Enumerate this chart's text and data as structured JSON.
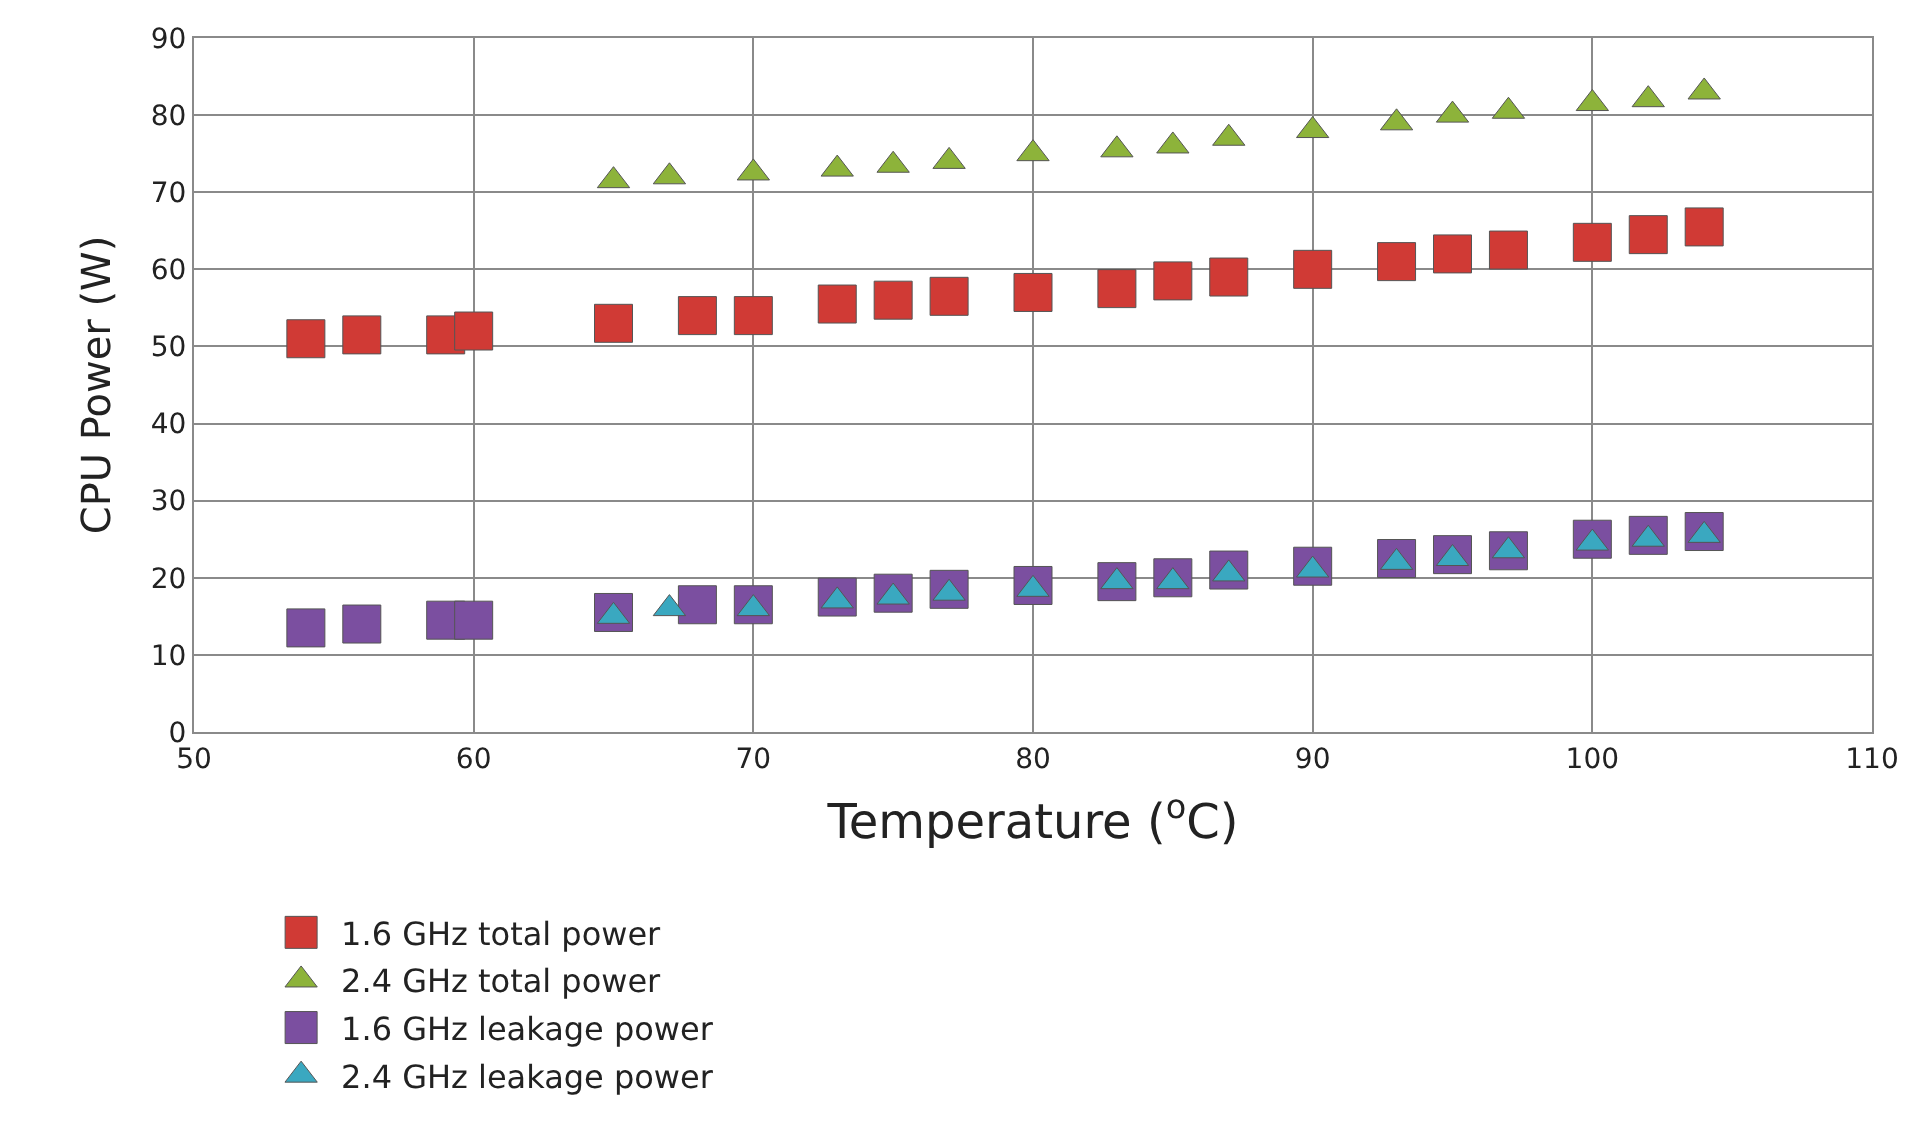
{
  "chart_data": {
    "type": "scatter",
    "xlabel": "Temperature ($^{o}$C)",
    "ylabel": "CPU Power (W)",
    "xlim": [
      50,
      110
    ],
    "xticks": [
      50,
      60,
      70,
      80,
      90,
      100,
      110
    ],
    "ylim": [
      0,
      90
    ],
    "yticks": [
      0,
      10,
      20,
      30,
      40,
      50,
      60,
      70,
      80,
      90
    ],
    "grid": true,
    "legend": "bottom",
    "series": [
      {
        "name": "1.6 GHz total power",
        "color": "#d03a35",
        "marker": "square",
        "x": [
          54,
          56,
          59,
          60,
          65,
          68,
          70,
          73,
          75,
          77,
          80,
          83,
          85,
          87,
          90,
          93,
          95,
          97,
          100,
          102,
          104
        ],
        "values": [
          51,
          51.5,
          51.5,
          52,
          53,
          54,
          54,
          55.5,
          56,
          56.5,
          57,
          57.5,
          58.5,
          59,
          60,
          61,
          62,
          62.5,
          63.5,
          64.5,
          65.5
        ]
      },
      {
        "name": "2.4 GHz total power",
        "color": "#8db33a",
        "marker": "triangle",
        "x": [
          65,
          67,
          70,
          73,
          75,
          77,
          80,
          83,
          85,
          87,
          90,
          93,
          95,
          97,
          100,
          102,
          104
        ],
        "values": [
          71.5,
          72,
          72.5,
          73,
          73.5,
          74,
          75,
          75.5,
          76,
          77,
          78,
          79,
          80,
          80.5,
          81.5,
          82,
          83
        ]
      },
      {
        "name": "1.6 GHz leakage power",
        "color": "#7b4fa0",
        "marker": "square",
        "x": [
          54,
          56,
          59,
          60,
          65,
          68,
          70,
          73,
          75,
          77,
          80,
          83,
          85,
          87,
          90,
          93,
          95,
          97,
          100,
          102,
          104
        ],
        "values": [
          13.5,
          14,
          14.5,
          14.5,
          15.5,
          16.5,
          16.5,
          17.5,
          18,
          18.5,
          19,
          19.5,
          20,
          21,
          21.5,
          22.5,
          23,
          23.5,
          25,
          25.5,
          26
        ]
      },
      {
        "name": "2.4 GHz leakage power",
        "color": "#3aa8c0",
        "marker": "triangle",
        "x": [
          65,
          67,
          70,
          73,
          75,
          77,
          80,
          83,
          85,
          87,
          90,
          93,
          95,
          97,
          100,
          102,
          104
        ],
        "values": [
          15,
          16,
          16,
          17,
          17.5,
          18,
          18.5,
          19.5,
          19.5,
          20.5,
          21,
          22,
          22.5,
          23.5,
          24.5,
          25,
          25.5
        ]
      }
    ]
  }
}
